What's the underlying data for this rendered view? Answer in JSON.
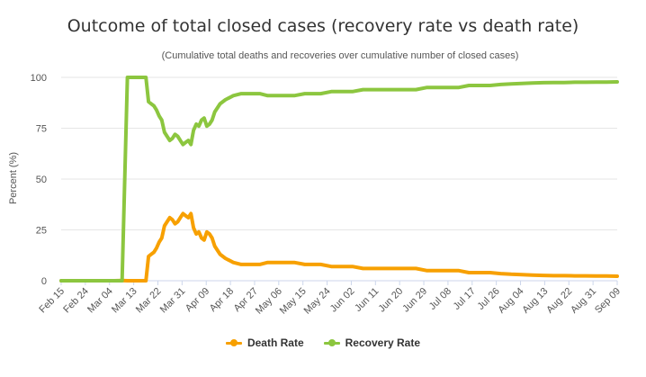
{
  "chart_data": {
    "type": "line",
    "title": "Outcome of total closed cases (recovery rate vs death rate)",
    "subtitle": "(Cumulative total deaths and recoveries over cumulative number of closed cases)",
    "ylabel": "Percent (%)",
    "xlabel": "",
    "ylim": [
      0,
      100
    ],
    "yticks": [
      0,
      25,
      50,
      75,
      100
    ],
    "grid": true,
    "legend_position": "bottom",
    "x_tick_labels": [
      "Feb 15",
      "Feb 24",
      "Mar 04",
      "Mar 13",
      "Mar 22",
      "Mar 31",
      "Apr 09",
      "Apr 18",
      "Apr 27",
      "May 06",
      "May 15",
      "May 24",
      "Jun 02",
      "Jun 11",
      "Jun 20",
      "Jun 29",
      "Jul 08",
      "Jul 17",
      "Jul 26",
      "Aug 04",
      "Aug 13",
      "Aug 22",
      "Aug 31",
      "Sep 09"
    ],
    "x_range_days": [
      0,
      210
    ],
    "series": [
      {
        "name": "Death Rate",
        "color": "#f7a000",
        "x": [
          0,
          7,
          14,
          20,
          23,
          25,
          28,
          30,
          32,
          33,
          34,
          35,
          36,
          37,
          38,
          39,
          40,
          41,
          42,
          43,
          44,
          45,
          46,
          47,
          48,
          49,
          50,
          51,
          52,
          53,
          54,
          55,
          56,
          57,
          58,
          60,
          62,
          65,
          68,
          72,
          75,
          78,
          82,
          85,
          88,
          92,
          95,
          98,
          102,
          106,
          110,
          114,
          118,
          122,
          126,
          130,
          134,
          138,
          142,
          146,
          150,
          154,
          158,
          162,
          166,
          170,
          174,
          178,
          182,
          186,
          190,
          194,
          198,
          202,
          206,
          210
        ],
        "values": [
          0,
          0,
          0,
          0,
          0.1,
          0,
          0,
          0,
          0,
          12,
          13,
          14,
          16,
          19,
          21,
          27,
          29,
          31,
          30,
          28,
          29,
          31,
          33,
          32,
          31,
          33,
          26,
          23,
          24,
          21,
          20,
          24,
          23,
          21,
          17,
          13,
          11,
          9,
          8,
          8,
          8,
          9,
          9,
          9,
          9,
          8,
          8,
          8,
          7,
          7,
          7,
          6,
          6,
          6,
          6,
          6,
          6,
          5,
          5,
          5,
          5,
          4,
          4,
          4,
          3.5,
          3.2,
          3,
          2.8,
          2.6,
          2.5,
          2.5,
          2.4,
          2.4,
          2.3,
          2.3,
          2.2
        ]
      },
      {
        "name": "Recovery Rate",
        "color": "#8cc63f",
        "x": [
          0,
          7,
          14,
          20,
          23,
          25,
          28,
          30,
          32,
          33,
          34,
          35,
          36,
          37,
          38,
          39,
          40,
          41,
          42,
          43,
          44,
          45,
          46,
          47,
          48,
          49,
          50,
          51,
          52,
          53,
          54,
          55,
          56,
          57,
          58,
          60,
          62,
          65,
          68,
          72,
          75,
          78,
          82,
          85,
          88,
          92,
          95,
          98,
          102,
          106,
          110,
          114,
          118,
          122,
          126,
          130,
          134,
          138,
          142,
          146,
          150,
          154,
          158,
          162,
          166,
          170,
          174,
          178,
          182,
          186,
          190,
          194,
          198,
          202,
          206,
          210
        ],
        "values": [
          0,
          0,
          0,
          0,
          0,
          100,
          100,
          100,
          100,
          88,
          87,
          86,
          84,
          81,
          79,
          73,
          71,
          69,
          70,
          72,
          71,
          69,
          67,
          68,
          69,
          67,
          74,
          77,
          76,
          79,
          80,
          76,
          77,
          79,
          83,
          87,
          89,
          91,
          92,
          92,
          92,
          91,
          91,
          91,
          91,
          92,
          92,
          92,
          93,
          93,
          93,
          94,
          94,
          94,
          94,
          94,
          94,
          95,
          95,
          95,
          95,
          96,
          96,
          96,
          96.5,
          96.8,
          97,
          97.2,
          97.4,
          97.5,
          97.5,
          97.6,
          97.6,
          97.7,
          97.7,
          97.8
        ]
      }
    ]
  }
}
